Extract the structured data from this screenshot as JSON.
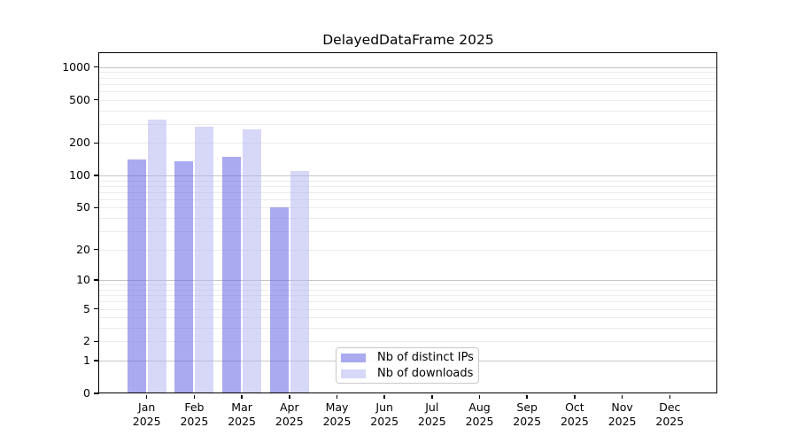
{
  "title": "DelayedDataFrame 2025",
  "chart_data": {
    "type": "bar",
    "title": "DelayedDataFrame 2025",
    "categories": [
      "Jan",
      "Feb",
      "Mar",
      "Apr",
      "May",
      "Jun",
      "Jul",
      "Aug",
      "Sep",
      "Oct",
      "Nov",
      "Dec"
    ],
    "year_label": "2025",
    "series": [
      {
        "name": "Nb of distinct IPs",
        "color": "rgba(85,85,225,0.5)",
        "values": [
          140,
          135,
          150,
          50,
          null,
          null,
          null,
          null,
          null,
          null,
          null,
          null
        ]
      },
      {
        "name": "Nb of downloads",
        "color": "rgba(175,175,240,0.5)",
        "values": [
          330,
          280,
          265,
          110,
          null,
          null,
          null,
          null,
          null,
          null,
          null,
          null
        ]
      }
    ],
    "y_ticks": [
      0,
      1,
      2,
      5,
      10,
      20,
      50,
      100,
      200,
      500,
      1000
    ],
    "y_scale": "log10(value+1)",
    "y_axis_top_value": 1343,
    "grid": "horizontal major and minor gridlines",
    "legend_position": "bottom-center inside plot",
    "xlabel": "",
    "ylabel": ""
  },
  "legend": {
    "items": [
      {
        "label": "Nb of distinct IPs"
      },
      {
        "label": "Nb of downloads"
      }
    ]
  },
  "colors": {
    "background": "#ffffff",
    "bar_distinct_ips": "rgba(85,85,225,0.5)",
    "bar_downloads": "rgba(175,175,240,0.5)",
    "grid_major": "#c6c6c6",
    "grid_minor": "#ececec",
    "spine": "#000000",
    "legend_border": "#c9c9c9",
    "text": "#000000"
  }
}
